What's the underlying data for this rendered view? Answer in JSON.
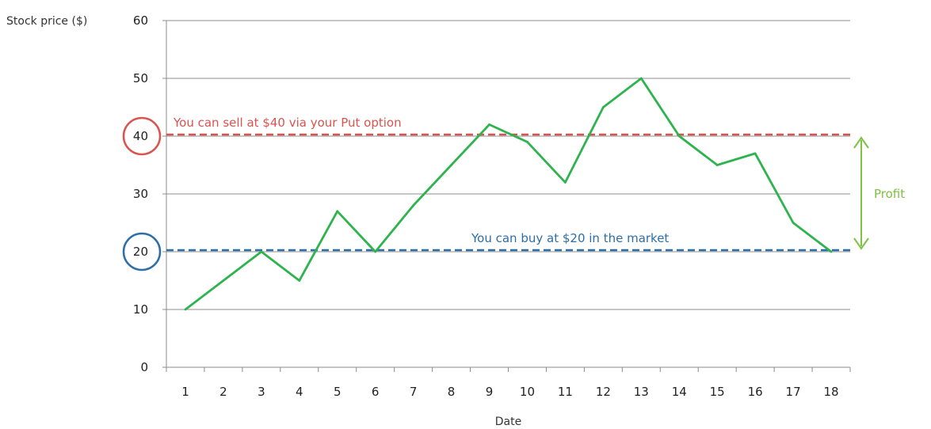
{
  "chart_data": {
    "type": "line",
    "ylabel": "Stock price ($)",
    "xlabel": "Date",
    "ylim": [
      0,
      60
    ],
    "yticks": [
      0,
      10,
      20,
      30,
      40,
      50,
      60
    ],
    "x": [
      1,
      2,
      3,
      4,
      5,
      6,
      7,
      8,
      9,
      10,
      11,
      12,
      13,
      14,
      15,
      16,
      17,
      18
    ],
    "series": [
      {
        "values": [
          10,
          15,
          20,
          15,
          27,
          20,
          28,
          35,
          42,
          39,
          32,
          45,
          50,
          40,
          35,
          37,
          25,
          20
        ],
        "color": "#2eb34e"
      }
    ],
    "reference_lines": [
      {
        "value": 40,
        "label": "You can sell at $40 via your Put option",
        "color": "#d9534f",
        "style": "dashed",
        "circled_tick": "40"
      },
      {
        "value": 20,
        "label": "You can buy at $20 in the market",
        "color": "#2c6ea8",
        "style": "dashed",
        "circled_tick": "20"
      }
    ],
    "annotations": [
      {
        "text": "Profit",
        "from": 20,
        "to": 40,
        "color": "#7dc242",
        "type": "double-arrow"
      }
    ],
    "grid": true,
    "legend": "none"
  }
}
